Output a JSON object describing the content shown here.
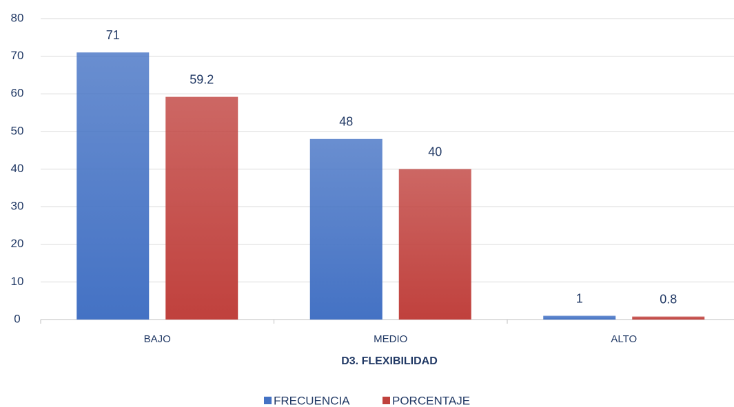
{
  "chart_data": {
    "type": "bar",
    "x_label": "D3. FLEXIBILIDAD",
    "categories": [
      "BAJO",
      "MEDIO",
      "ALTO"
    ],
    "series": [
      {
        "name": "FRECUENCIA",
        "color": "#4472c4",
        "values": [
          71,
          48,
          1
        ]
      },
      {
        "name": "PORCENTAJE",
        "color": "#c0413d",
        "values": [
          59.2,
          40,
          0.8
        ]
      }
    ],
    "ylim": [
      0,
      80
    ],
    "yticks": [
      0,
      10,
      20,
      30,
      40,
      50,
      60,
      70,
      80
    ],
    "grid": true,
    "legend": "bottom",
    "data_labels": true
  }
}
